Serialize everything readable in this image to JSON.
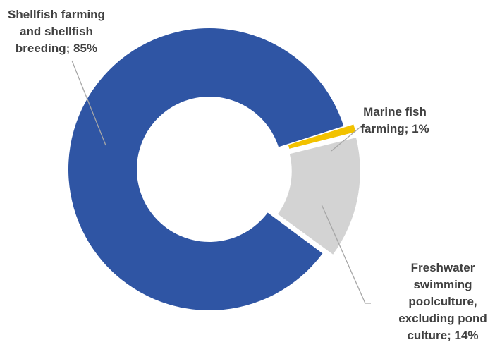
{
  "chart_data": {
    "type": "pie",
    "variant": "donut",
    "title": "",
    "slices": [
      {
        "label_lines": [
          "Freshwater",
          "swimming",
          "poolculture,",
          "excluding pond",
          "culture; 14%"
        ],
        "category": "Freshwater swimming poolculture, excluding pond culture",
        "value": 14,
        "color": "#d3d3d3",
        "exploded": true
      },
      {
        "label_lines": [
          "Shellfish farming",
          "and shellfish",
          "breeding; 85%"
        ],
        "category": "Shellfish farming and shellfish breeding",
        "value": 85,
        "color": "#2f55a4",
        "exploded": false
      },
      {
        "label_lines": [
          "Marine fish",
          "farming; 1%"
        ],
        "category": "Marine fish farming",
        "value": 1,
        "color": "#f2c200",
        "exploded": true
      }
    ],
    "legend": "none",
    "data_labels": "outside with leader lines"
  }
}
